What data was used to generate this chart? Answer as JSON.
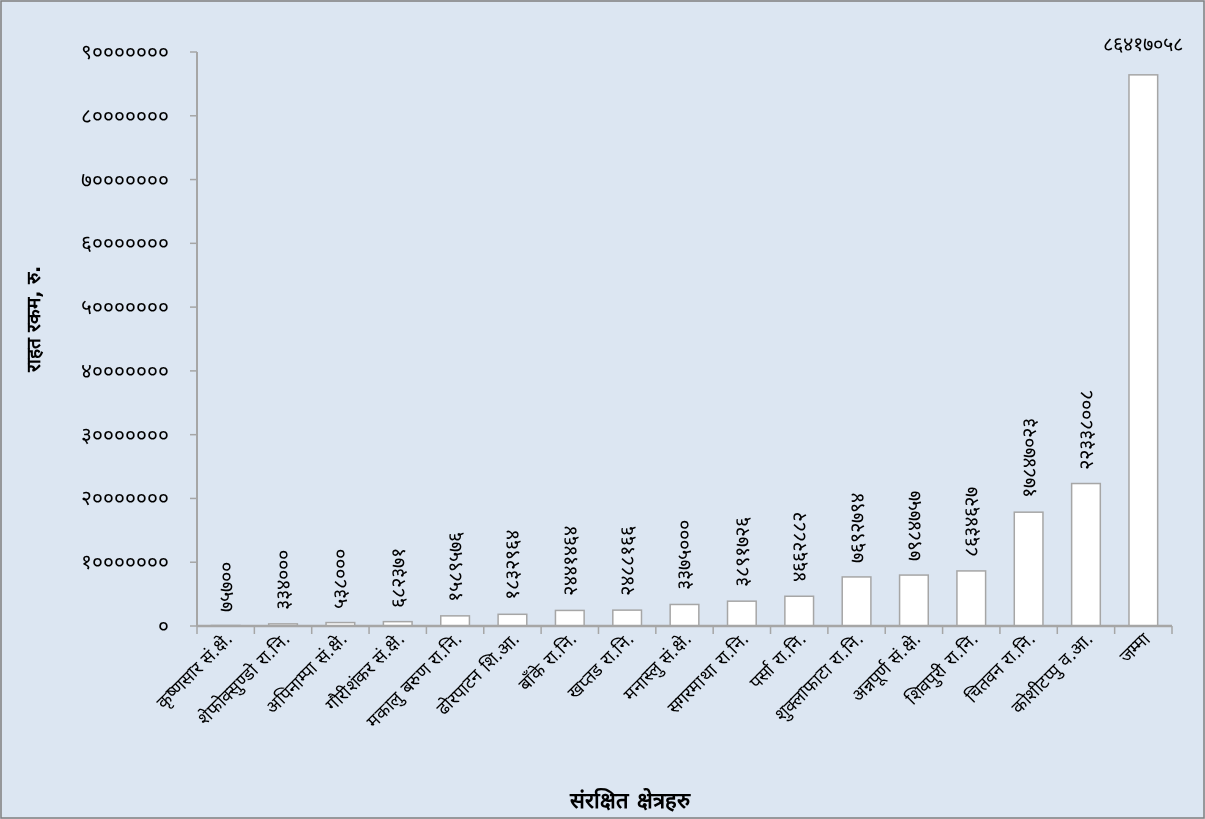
{
  "chart_data": {
    "type": "bar",
    "xlabel": "संरक्षित क्षेत्रहरु",
    "ylabel": "राहत रकम, रु.",
    "categories": [
      "कृष्णसार सं.क्षे.",
      "शेफोक्सुण्डो रा.नि.",
      "अपिनाम्पा सं.क्षे.",
      "गौरीशंकर सं.क्षे.",
      "मकालु बरुण रा.नि.",
      "ढोरपाटन शि.आ.",
      "बाँके रा.नि.",
      "खप्तड रा.नि.",
      "मनास्लु सं.क्षे.",
      "सगरमाथा रा.नि.",
      "पर्सा रा.नि.",
      "शुक्लाफाटा रा.नि.",
      "अन्नपूर्ण सं.क्षे.",
      "शिवपुरी रा.नि.",
      "चितवन रा.नि.",
      "कोशीटप्पु व.आ.",
      "जम्मा"
    ],
    "values": [
      75700,
      334000,
      538000,
      682371,
      1589576,
      1832964,
      2441464,
      2488166,
      3375000,
      3891726,
      4662882,
      7692794,
      7984757,
      8634627,
      17847023,
      22338008,
      86417058
    ],
    "value_labels": [
      "७५७००",
      "३३४०००",
      "५३८०००",
      "६८२३७१",
      "१५८९५७६",
      "१८३२९६४",
      "२४४१४६४",
      "२४८८१६६",
      "३३७५०००",
      "३८९१७२६",
      "४६६२८८२",
      "७६९२७९४",
      "७९८४७५७",
      "८६३४६२७",
      "१७८४७०२३",
      "२२३३८००८",
      "८६४१७०५८"
    ],
    "color": "#ffffff",
    "ylim": [
      0,
      90000000
    ],
    "yticks": [
      {
        "value": 0,
        "label": "०"
      },
      {
        "value": 10000000,
        "label": "१०००००००"
      },
      {
        "value": 20000000,
        "label": "२०००००००"
      },
      {
        "value": 30000000,
        "label": "३०००००००"
      },
      {
        "value": 40000000,
        "label": "४०००००००"
      },
      {
        "value": 50000000,
        "label": "५०००००००"
      },
      {
        "value": 60000000,
        "label": "६०००००००"
      },
      {
        "value": 70000000,
        "label": "७०००००००"
      },
      {
        "value": 80000000,
        "label": "८०००००००"
      },
      {
        "value": 90000000,
        "label": "९०००००००"
      }
    ],
    "grid": false
  }
}
